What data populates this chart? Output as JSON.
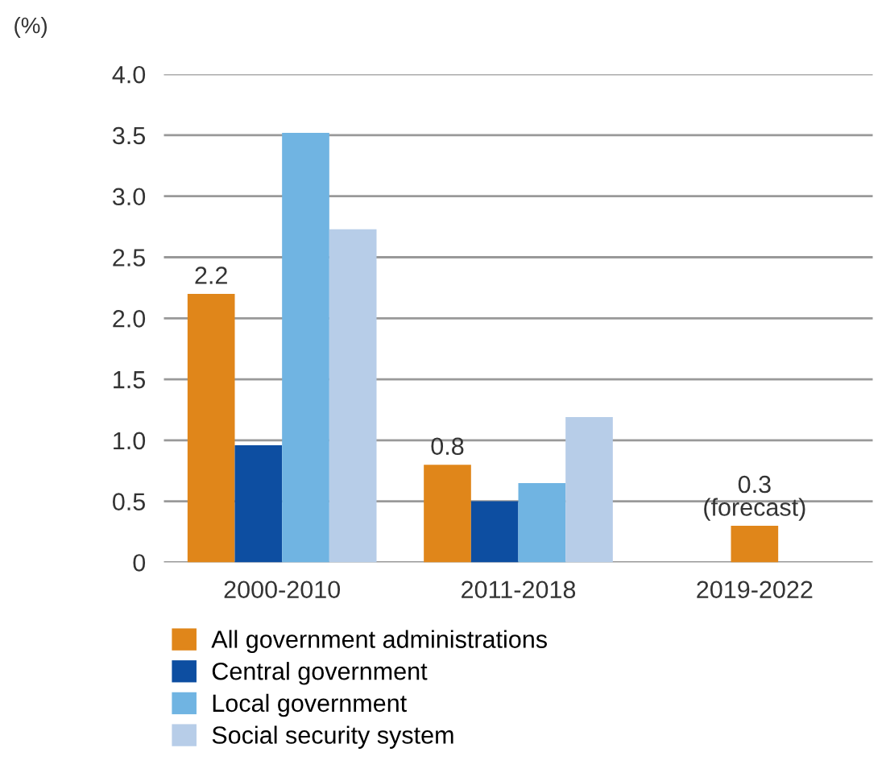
{
  "chart_data": {
    "type": "bar",
    "ylabel": "(%)",
    "categories": [
      "2000-2010",
      "2011-2018",
      "2019-2022"
    ],
    "series": [
      {
        "name": "All government administrations",
        "color": "#e0861a",
        "values": [
          2.2,
          0.8,
          0.3
        ],
        "value_labels": [
          "2.2",
          "0.8",
          "0.3\n(forecast)"
        ]
      },
      {
        "name": "Central government",
        "color": "#0d4ea1",
        "values": [
          0.96,
          0.5,
          null
        ]
      },
      {
        "name": "Local government",
        "color": "#70b4e2",
        "values": [
          3.52,
          0.65,
          null
        ]
      },
      {
        "name": "Social security system",
        "color": "#b7cde8",
        "values": [
          2.73,
          1.19,
          null
        ]
      }
    ],
    "ylim": [
      0,
      4.0
    ],
    "yticks": [
      0,
      {
        "value": 0.5,
        "label": "0.5"
      },
      {
        "value": 1,
        "label": "1.0"
      },
      {
        "value": 1.5,
        "label": "1.5"
      },
      {
        "value": 2,
        "label": "2.0"
      },
      {
        "value": 2.5,
        "label": "2.5"
      },
      {
        "value": 3,
        "label": "3.0"
      },
      {
        "value": 3.5,
        "label": "3.5"
      },
      {
        "value": 4,
        "label": "4.0"
      }
    ],
    "grid": "y",
    "legend": "bottom"
  }
}
